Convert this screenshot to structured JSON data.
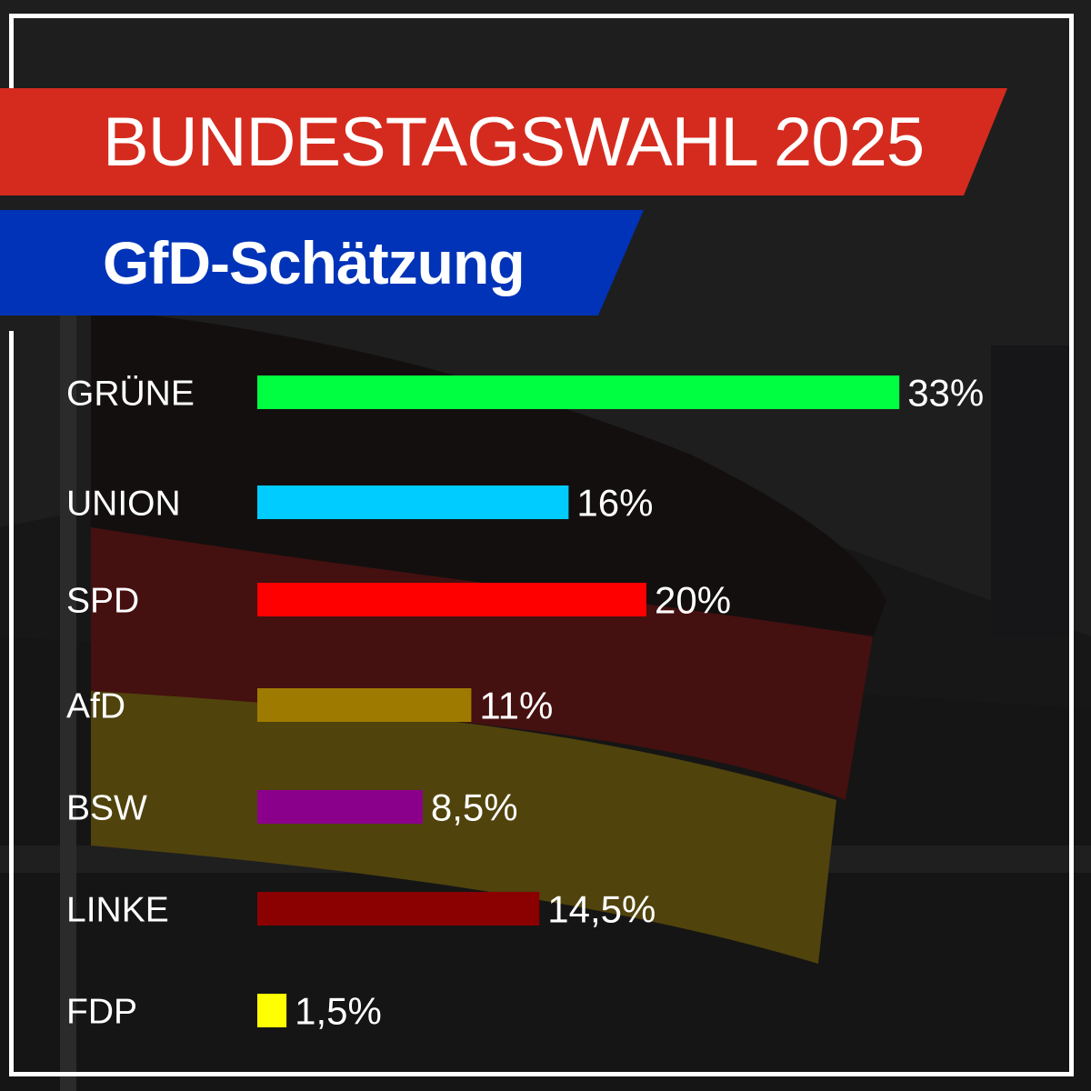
{
  "title": "BUNDESTAGSWAHL 2025",
  "subtitle": "GfD-Schätzung",
  "colors": {
    "title_banner": "#d52b1e",
    "subtitle_banner": "#0033b8",
    "frame": "#ffffff"
  },
  "chart_data": {
    "type": "bar",
    "orientation": "horizontal",
    "categories": [
      "GRÜNE",
      "UNION",
      "SPD",
      "AfD",
      "BSW",
      "LINKE",
      "FDP"
    ],
    "values": [
      33,
      16,
      20,
      11,
      8.5,
      14.5,
      1.5
    ],
    "value_labels": [
      "33%",
      "16%",
      "20%",
      "11%",
      "8,5%",
      "14,5%",
      "1,5%"
    ],
    "unit": "%",
    "colors": [
      "#00ff40",
      "#00ccff",
      "#ff0000",
      "#9e7b00",
      "#8b008b",
      "#8b0000",
      "#ffff00"
    ],
    "title": "BUNDESTAGSWAHL 2025",
    "subtitle": "GfD-Schätzung",
    "grid": false,
    "legend": "none"
  }
}
